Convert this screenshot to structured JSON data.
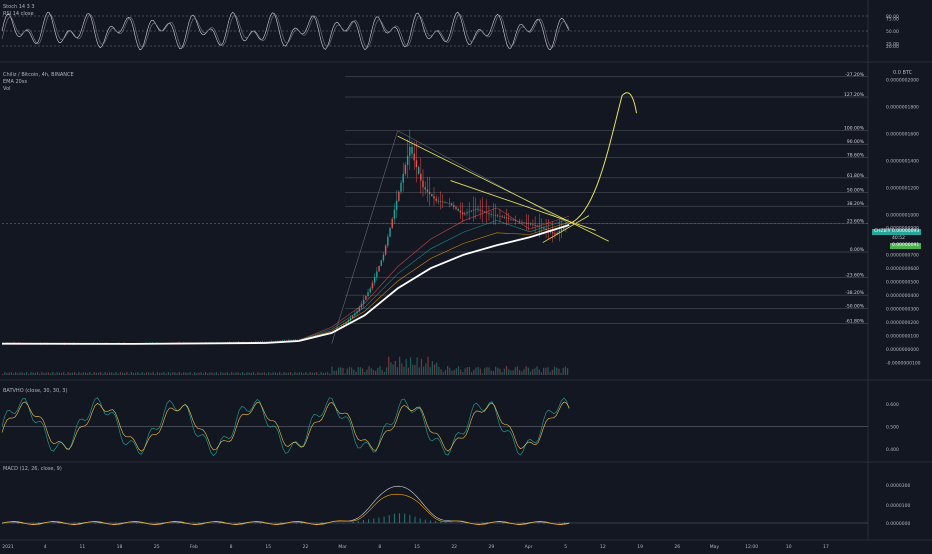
{
  "symbol_title": "Chiliz / Bitcoin, 4h, BINANCE",
  "indicators_main": [
    "EMA 20ss",
    "Vol"
  ],
  "panes": {
    "stoch": {
      "label": "Stoch 14 3 3",
      "label2": "RSI 14 close",
      "ticks": [
        "80.00",
        "75.00",
        "50.00",
        "25.00",
        "20.00"
      ]
    },
    "main": {
      "unit_label": "0.0 BTC"
    },
    "batv": {
      "label": "BATVHO (close, 30, 30, 3)",
      "ticks": [
        "0.600",
        "0.500",
        "0.400"
      ]
    },
    "macd": {
      "label": "MACD (12, 26, close, 9)",
      "ticks": [
        "0.0000300",
        "0.0000100",
        "0.0000000"
      ]
    }
  },
  "chart_data": {
    "type": "line",
    "title": "Chiliz / Bitcoin, 4h, BINANCE",
    "xlabel": "",
    "ylabel": "",
    "x_ticks": [
      "2021",
      "4",
      "11",
      "18",
      "25",
      "Feb",
      "8",
      "15",
      "22",
      "Mar",
      "8",
      "15",
      "22",
      "29",
      "Apr",
      "5",
      "12",
      "19",
      "26",
      "May",
      "12:00",
      "10",
      "17"
    ],
    "y_ticks": [
      "0.0000002000",
      "0.0000001800",
      "0.0000001600",
      "0.0000001400",
      "0.0000001200",
      "0.0000001000",
      "0.0000000900",
      "0.0000000700",
      "0.0000000600",
      "0.0000000500",
      "0.0000000400",
      "0.0000000300",
      "0.0000000200",
      "0.0000000100",
      "0.0000000000",
      "-0.0000000100"
    ],
    "ylim": [
      -2e-08,
      2.1e-07
    ],
    "price_tag_symbol": "CHZBTC",
    "price_tag_value": "0.00000093",
    "price_tag_sub": "40:52",
    "price_tag_ema": "0.00000091",
    "fib_levels": [
      {
        "label": "-27.20%",
        "value": 2.02e-07
      },
      {
        "label": "127.20%",
        "value": 1.87e-07
      },
      {
        "label": "100.00%",
        "value": 1.62e-07
      },
      {
        "label": "90.00%",
        "value": 1.52e-07
      },
      {
        "label": "78.60%",
        "value": 1.42e-07
      },
      {
        "label": "61.80%",
        "value": 1.27e-07
      },
      {
        "label": "50.00%",
        "value": 1.16e-07
      },
      {
        "label": "38.20%",
        "value": 1.06e-07
      },
      {
        "label": "23.60%",
        "value": 9.3e-08
      },
      {
        "label": "0.00%",
        "value": 7.2e-08
      },
      {
        "label": "-23.60%",
        "value": 5.3e-08
      },
      {
        "label": "-38.20%",
        "value": 4e-08
      },
      {
        "label": "-50.00%",
        "value": 3e-08
      },
      {
        "label": "-61.80%",
        "value": 1.9e-08
      }
    ],
    "series": [
      {
        "type": "candles",
        "x": [
          0,
          5,
          10,
          15,
          20,
          25,
          30,
          35,
          40,
          45,
          50,
          52,
          54,
          56,
          58,
          60,
          62,
          64,
          66,
          68,
          70,
          72,
          74,
          76,
          78,
          80,
          82,
          84,
          86
        ],
        "close": [
          4.5e-09,
          4e-09,
          3.8e-09,
          4.2e-09,
          4e-09,
          4.5e-09,
          4.2e-09,
          4.8e-09,
          5.5e-09,
          7e-09,
          1.2e-08,
          1.8e-08,
          2.8e-08,
          4.5e-08,
          7e-08,
          1.1e-07,
          1.5e-07,
          1.2e-07,
          1.1e-07,
          1.08e-07,
          1e-07,
          1.04e-07,
          1e-07,
          9.8e-08,
          9.5e-08,
          9.3e-08,
          9e-08,
          8.5e-08,
          9.3e-08
        ]
      },
      {
        "type": "ema_white",
        "x": [
          0,
          20,
          40,
          45,
          50,
          55,
          60,
          65,
          70,
          75,
          80,
          86
        ],
        "y": [
          4e-09,
          3.8e-09,
          4.5e-09,
          6e-09,
          1.2e-08,
          2.5e-08,
          4.5e-08,
          6e-08,
          7e-08,
          7.7e-08,
          8.3e-08,
          9.2e-08
        ]
      },
      {
        "type": "projection_yellow",
        "x": [
          86,
          88,
          90,
          92,
          94,
          95
        ],
        "y": [
          9.3e-08,
          1.05e-07,
          1.3e-07,
          1.6e-07,
          1.88e-07,
          1.86e-07
        ]
      }
    ]
  }
}
